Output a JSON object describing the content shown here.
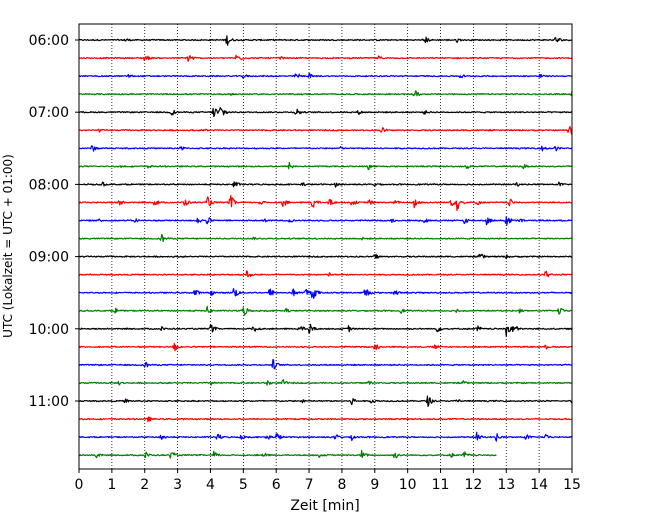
{
  "chart_data": {
    "type": "line",
    "title": "",
    "xlabel": "Zeit  [min]",
    "ylabel": "UTC (Lokalzeit = UTC + 01:00)",
    "xlim": [
      0,
      15
    ],
    "xticks": [
      0,
      1,
      2,
      3,
      4,
      5,
      6,
      7,
      8,
      9,
      10,
      11,
      12,
      13,
      14,
      15
    ],
    "xtick_labels": [
      "0",
      "1",
      "2",
      "3",
      "4",
      "5",
      "6",
      "7",
      "8",
      "9",
      "10",
      "11",
      "12",
      "13",
      "14",
      "15"
    ],
    "ytick_labels": [
      "06:00",
      "07:00",
      "08:00",
      "09:00",
      "10:00",
      "11:00"
    ],
    "ytick_rows": [
      0,
      4,
      8,
      12,
      16,
      20
    ],
    "grid": {
      "x": true,
      "y": false,
      "style": "dotted"
    },
    "row_interval_minutes": 15,
    "row_colors": [
      "#000000",
      "#ff0000",
      "#0000ff",
      "#008000"
    ],
    "series": [
      {
        "start": "06:00",
        "end_minute": 15,
        "events": [
          [
            1.4,
            0.35
          ],
          [
            4.5,
            0.7
          ],
          [
            10.5,
            0.55
          ],
          [
            11.5,
            0.3
          ],
          [
            14.5,
            0.6
          ]
        ]
      },
      {
        "start": "06:15",
        "end_minute": 15,
        "events": [
          [
            2.0,
            0.5
          ],
          [
            3.3,
            0.8
          ],
          [
            4.8,
            0.7
          ],
          [
            6.1,
            0.3
          ],
          [
            9.1,
            0.3
          ]
        ]
      },
      {
        "start": "06:30",
        "end_minute": 15,
        "events": [
          [
            1.5,
            0.3
          ],
          [
            5.0,
            0.35
          ],
          [
            6.6,
            0.55
          ],
          [
            7.0,
            0.35
          ],
          [
            11.6,
            0.35
          ],
          [
            14.0,
            0.35
          ]
        ]
      },
      {
        "start": "06:45",
        "end_minute": 15,
        "events": [
          [
            4.6,
            0.3
          ],
          [
            10.2,
            0.55
          ],
          [
            15.0,
            0.45
          ]
        ]
      },
      {
        "start": "07:00",
        "end_minute": 15,
        "events": [
          [
            2.8,
            0.5
          ],
          [
            4.1,
            0.9
          ],
          [
            4.3,
            1.0
          ],
          [
            6.6,
            0.6
          ],
          [
            8.5,
            0.3
          ],
          [
            10.5,
            0.3
          ]
        ]
      },
      {
        "start": "07:15",
        "end_minute": 15,
        "events": [
          [
            0.6,
            0.25
          ],
          [
            3.8,
            0.25
          ],
          [
            9.2,
            0.45
          ],
          [
            14.9,
            0.85
          ]
        ]
      },
      {
        "start": "07:30",
        "end_minute": 15,
        "events": [
          [
            0.4,
            0.45
          ],
          [
            3.1,
            0.3
          ],
          [
            7.9,
            0.35
          ],
          [
            14.1,
            0.45
          ],
          [
            14.5,
            0.35
          ]
        ]
      },
      {
        "start": "07:45",
        "end_minute": 15,
        "events": [
          [
            1.3,
            0.3
          ],
          [
            2.1,
            0.25
          ],
          [
            6.4,
            0.5
          ],
          [
            8.8,
            0.45
          ],
          [
            11.8,
            0.3
          ],
          [
            13.5,
            0.35
          ]
        ]
      },
      {
        "start": "08:00",
        "end_minute": 15,
        "events": [
          [
            0.7,
            0.3
          ],
          [
            4.7,
            0.55
          ],
          [
            6.8,
            0.3
          ],
          [
            7.8,
            0.3
          ],
          [
            9.0,
            0.35
          ],
          [
            13.3,
            0.3
          ],
          [
            14.6,
            0.3
          ]
        ]
      },
      {
        "start": "08:15",
        "end_minute": 15,
        "events": [
          [
            1.2,
            0.5
          ],
          [
            2.3,
            0.5
          ],
          [
            3.2,
            0.6
          ],
          [
            3.9,
            0.75
          ],
          [
            4.6,
            0.9
          ],
          [
            5.5,
            0.4
          ],
          [
            6.2,
            0.6
          ],
          [
            7.1,
            0.75
          ],
          [
            7.6,
            0.6
          ],
          [
            8.3,
            0.5
          ],
          [
            8.8,
            0.45
          ],
          [
            9.6,
            0.35
          ],
          [
            10.2,
            0.9
          ],
          [
            11.3,
            0.6
          ],
          [
            11.5,
            1.0
          ],
          [
            12.1,
            0.4
          ],
          [
            13.1,
            0.5
          ]
        ]
      },
      {
        "start": "08:30",
        "end_minute": 15,
        "events": [
          [
            0.6,
            0.3
          ],
          [
            1.7,
            0.3
          ],
          [
            3.6,
            0.45
          ],
          [
            3.9,
            0.5
          ],
          [
            5.6,
            0.3
          ],
          [
            6.4,
            0.3
          ],
          [
            9.5,
            0.3
          ],
          [
            10.5,
            0.4
          ],
          [
            11.7,
            0.5
          ],
          [
            12.4,
            0.55
          ],
          [
            13.0,
            0.7
          ],
          [
            13.4,
            0.35
          ]
        ]
      },
      {
        "start": "08:45",
        "end_minute": 15,
        "events": [
          [
            2.5,
            0.65
          ],
          [
            5.3,
            0.2
          ],
          [
            8.6,
            0.2
          ]
        ]
      },
      {
        "start": "09:00",
        "end_minute": 15,
        "events": [
          [
            9.0,
            0.4
          ],
          [
            12.2,
            0.5
          ],
          [
            13.0,
            0.25
          ]
        ]
      },
      {
        "start": "09:15",
        "end_minute": 15,
        "events": [
          [
            5.1,
            0.55
          ],
          [
            7.6,
            0.3
          ],
          [
            14.2,
            0.55
          ]
        ]
      },
      {
        "start": "09:30",
        "end_minute": 15,
        "events": [
          [
            3.5,
            0.55
          ],
          [
            4.0,
            0.4
          ],
          [
            4.7,
            0.8
          ],
          [
            5.8,
            0.6
          ],
          [
            6.5,
            0.55
          ],
          [
            6.9,
            0.6
          ],
          [
            7.1,
            0.9
          ],
          [
            8.7,
            0.8
          ],
          [
            9.6,
            0.45
          ]
        ]
      },
      {
        "start": "09:45",
        "end_minute": 15,
        "events": [
          [
            1.1,
            0.4
          ],
          [
            3.9,
            0.5
          ],
          [
            5.0,
            0.8
          ],
          [
            6.3,
            0.35
          ],
          [
            9.8,
            0.3
          ],
          [
            11.5,
            0.3
          ],
          [
            13.4,
            0.3
          ],
          [
            14.6,
            0.5
          ]
        ]
      },
      {
        "start": "10:00",
        "end_minute": 15,
        "events": [
          [
            2.5,
            0.3
          ],
          [
            4.0,
            0.6
          ],
          [
            5.3,
            0.6
          ],
          [
            6.7,
            0.55
          ],
          [
            7.0,
            0.75
          ],
          [
            8.2,
            0.4
          ],
          [
            10.9,
            0.4
          ],
          [
            12.1,
            0.5
          ],
          [
            13.0,
            0.9
          ],
          [
            13.2,
            0.7
          ]
        ]
      },
      {
        "start": "10:15",
        "end_minute": 15,
        "events": [
          [
            2.9,
            0.6
          ],
          [
            9.0,
            0.5
          ],
          [
            10.8,
            0.35
          ],
          [
            14.2,
            0.3
          ]
        ]
      },
      {
        "start": "10:30",
        "end_minute": 15,
        "events": [
          [
            2.0,
            0.5
          ],
          [
            5.9,
            0.7
          ]
        ]
      },
      {
        "start": "10:45",
        "end_minute": 15,
        "events": [
          [
            1.2,
            0.3
          ],
          [
            4.0,
            0.35
          ],
          [
            5.7,
            0.45
          ],
          [
            6.2,
            0.45
          ],
          [
            8.8,
            0.35
          ],
          [
            11.7,
            0.3
          ]
        ]
      },
      {
        "start": "11:00",
        "end_minute": 15,
        "events": [
          [
            1.4,
            0.3
          ],
          [
            6.8,
            0.35
          ],
          [
            8.3,
            0.55
          ],
          [
            8.9,
            0.35
          ],
          [
            10.6,
            0.7
          ],
          [
            11.5,
            0.35
          ],
          [
            15.0,
            0.3
          ]
        ]
      },
      {
        "start": "11:15",
        "end_minute": 15,
        "events": [
          [
            2.1,
            0.35
          ]
        ]
      },
      {
        "start": "11:30",
        "end_minute": 15,
        "events": [
          [
            2.5,
            0.5
          ],
          [
            4.2,
            0.5
          ],
          [
            4.9,
            0.45
          ],
          [
            5.7,
            0.45
          ],
          [
            6.0,
            0.6
          ],
          [
            7.8,
            0.45
          ],
          [
            8.3,
            0.45
          ],
          [
            12.1,
            0.55
          ],
          [
            12.7,
            0.5
          ],
          [
            13.6,
            0.4
          ],
          [
            14.2,
            0.3
          ]
        ]
      },
      {
        "start": "11:45",
        "end_minute": 12.7,
        "events": [
          [
            0.5,
            0.5
          ],
          [
            2.0,
            0.5
          ],
          [
            2.8,
            0.55
          ],
          [
            4.1,
            0.45
          ],
          [
            5.6,
            0.4
          ],
          [
            7.3,
            0.3
          ],
          [
            8.6,
            0.55
          ],
          [
            9.6,
            0.5
          ],
          [
            11.3,
            0.35
          ],
          [
            11.7,
            0.55
          ]
        ]
      }
    ]
  }
}
